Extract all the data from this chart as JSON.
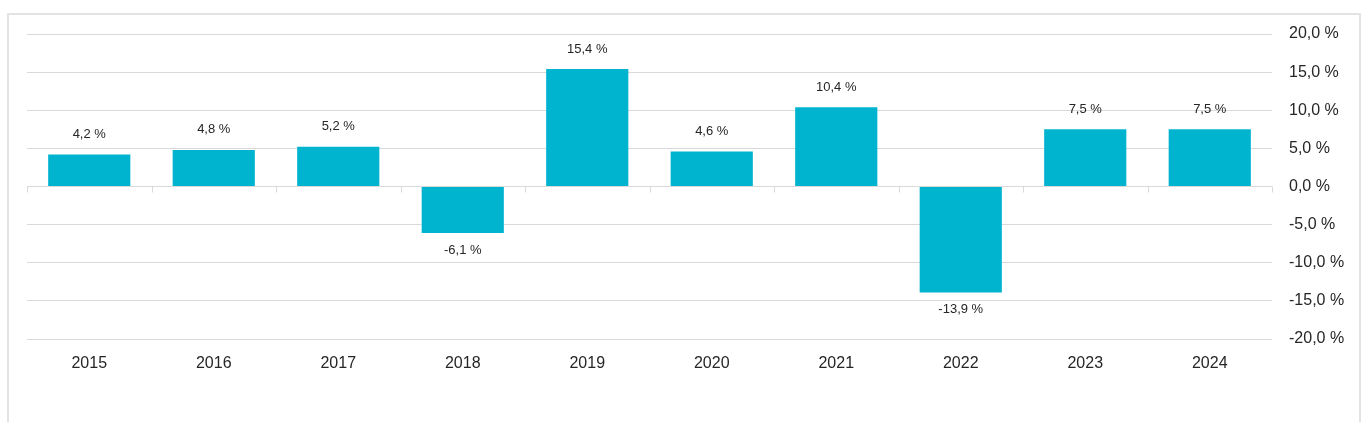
{
  "chart_data": {
    "type": "bar",
    "categories": [
      "2015",
      "2016",
      "2017",
      "2018",
      "2019",
      "2020",
      "2021",
      "2022",
      "2023",
      "2024"
    ],
    "values": [
      4.2,
      4.8,
      5.2,
      -6.1,
      15.4,
      4.6,
      10.4,
      -13.9,
      7.5,
      7.5
    ],
    "value_labels": [
      "4,2 %",
      "4,8 %",
      "5,2 %",
      "-6,1 %",
      "15,4 %",
      "4,6 %",
      "10,4 %",
      "-13,9 %",
      "7,5 %",
      "7,5 %"
    ],
    "color": "#00b4d0",
    "ylim": [
      -20,
      20
    ],
    "yticks": [
      {
        "value": -20,
        "label": "-20,0 %"
      },
      {
        "value": -15,
        "label": "-15,0 %"
      },
      {
        "value": -10,
        "label": "-10,0 %"
      },
      {
        "value": -5,
        "label": "-5,0 %"
      },
      {
        "value": 0,
        "label": "0,0 %"
      },
      {
        "value": 5,
        "label": "5,0 %"
      },
      {
        "value": 10,
        "label": "10,0 %"
      },
      {
        "value": 15,
        "label": "15,0 %"
      },
      {
        "value": 20,
        "label": "20,0 %"
      }
    ],
    "grid": "y"
  }
}
